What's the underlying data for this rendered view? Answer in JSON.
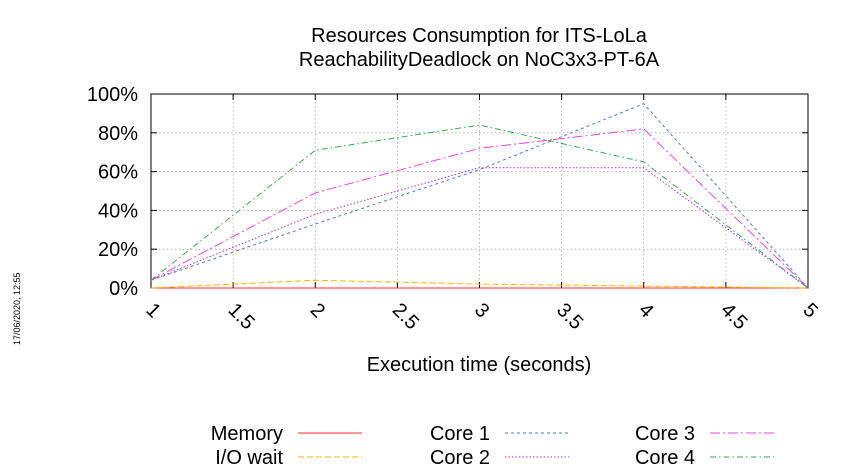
{
  "timestamp": "17/06/2020, 12:55",
  "chart_data": {
    "type": "line",
    "title": [
      "Resources Consumption for ITS-LoLa",
      "ReachabilityDeadlock on NoC3x3-PT-6A"
    ],
    "xlabel": "Execution time (seconds)",
    "ylabel": "",
    "xlim": [
      1,
      5
    ],
    "ylim": [
      0,
      100
    ],
    "x_ticks": [
      "1",
      "1.5",
      "2",
      "2.5",
      "3",
      "3.5",
      "4",
      "4.5",
      "5"
    ],
    "y_ticks": [
      "0%",
      "20%",
      "40%",
      "60%",
      "80%",
      "100%"
    ],
    "grid": true,
    "legend_position": "bottom",
    "x": [
      1,
      2,
      3,
      4,
      5
    ],
    "series": [
      {
        "name": "Memory",
        "color": "#ff3333",
        "dash": "",
        "values": [
          0,
          0,
          0,
          0,
          0
        ]
      },
      {
        "name": "I/O wait",
        "color": "#f5b800",
        "dash": "6,3",
        "values": [
          0,
          4,
          2,
          1,
          0
        ]
      },
      {
        "name": "Core 1",
        "color": "#5577dd",
        "dash": "3,3",
        "values": [
          4,
          33,
          61,
          95,
          0
        ]
      },
      {
        "name": "Core 2",
        "color": "#aa33cc",
        "dash": "1.5,2",
        "values": [
          4,
          38,
          62,
          62,
          0
        ]
      },
      {
        "name": "Core 3",
        "color": "#ee44dd",
        "dash": "10,3,2,3",
        "values": [
          4,
          49,
          72,
          82,
          0
        ]
      },
      {
        "name": "Core 4",
        "color": "#33aa55",
        "dash": "6,3,1.5,3",
        "values": [
          4,
          71,
          84,
          65,
          0
        ]
      }
    ]
  }
}
